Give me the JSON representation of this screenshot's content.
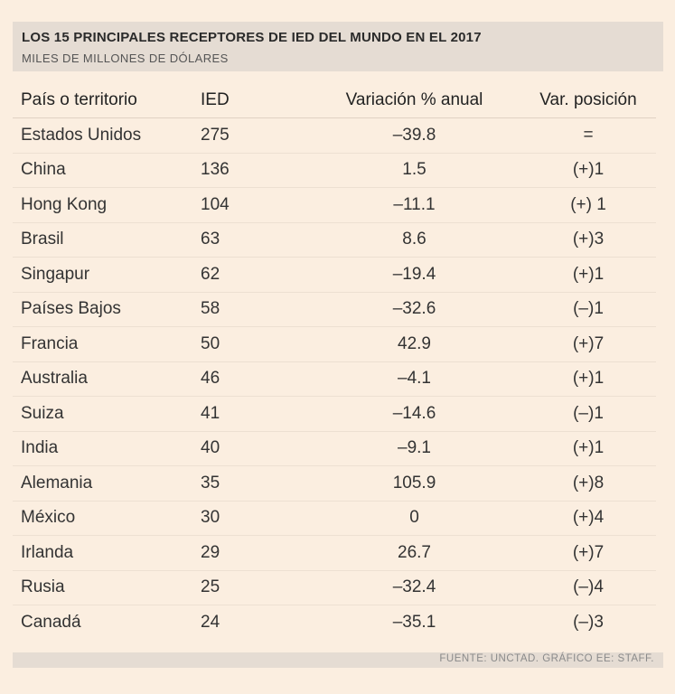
{
  "chart_data": {
    "type": "table",
    "title": "LOS 15 PRINCIPALES RECEPTORES DE IED DEL MUNDO EN EL 2017",
    "subtitle": "MILES DE MILLONES DE DÓLARES",
    "columns": [
      "País o territorio",
      "IED",
      "Variación % anual",
      "Var. posición"
    ],
    "rows": [
      [
        "Estados Unidos",
        "275",
        "–39.8",
        "="
      ],
      [
        "China",
        "136",
        "1.5",
        "(+)1"
      ],
      [
        "Hong Kong",
        "104",
        "–11.1",
        "(+) 1"
      ],
      [
        "Brasil",
        "63",
        "8.6",
        "(+)3"
      ],
      [
        "Singapur",
        "62",
        "–19.4",
        "(+)1"
      ],
      [
        "Países Bajos",
        "58",
        "–32.6",
        "(–)1"
      ],
      [
        "Francia",
        "50",
        "42.9",
        "(+)7"
      ],
      [
        "Australia",
        "46",
        "–4.1",
        "(+)1"
      ],
      [
        "Suiza",
        "41",
        "–14.6",
        "(–)1"
      ],
      [
        "India",
        "40",
        "–9.1",
        "(+)1"
      ],
      [
        "Alemania",
        "35",
        "105.9",
        "(+)8"
      ],
      [
        "México",
        "30",
        "0",
        "(+)4"
      ],
      [
        "Irlanda",
        "29",
        "26.7",
        "(+)7"
      ],
      [
        "Rusia",
        "25",
        "–32.4",
        "(–)4"
      ],
      [
        "Canadá",
        "24",
        "–35.1",
        "(–)3"
      ]
    ],
    "source": "FUENTE: UNCTAD. GRÁFICO EE: STAFF."
  }
}
